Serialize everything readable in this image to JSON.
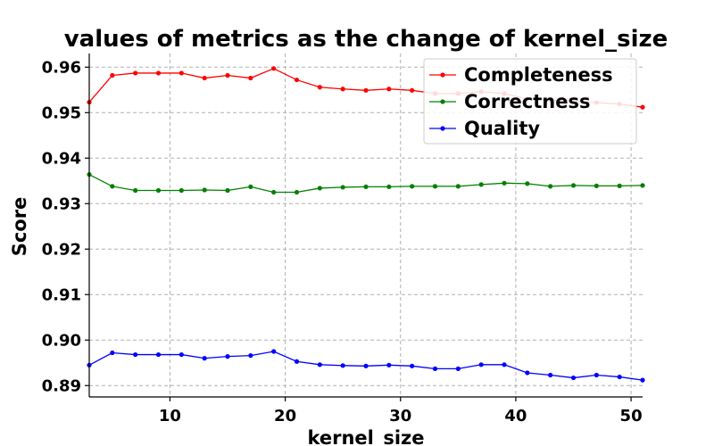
{
  "chart_data": {
    "type": "line",
    "title": "values of metrics as the change of kernel_size",
    "xlabel": "kernel_size",
    "ylabel": "Score",
    "xlim": [
      3,
      51
    ],
    "ylim": [
      0.8875,
      0.963
    ],
    "xticks": [
      10,
      20,
      30,
      40,
      50
    ],
    "yticks": [
      0.89,
      0.9,
      0.91,
      0.92,
      0.93,
      0.94,
      0.95,
      0.96
    ],
    "grid": true,
    "legend_position": "top-right",
    "x": [
      3,
      5,
      7,
      9,
      11,
      13,
      15,
      17,
      19,
      21,
      23,
      25,
      27,
      29,
      31,
      33,
      35,
      37,
      39,
      41,
      43,
      45,
      47,
      49,
      51
    ],
    "series": [
      {
        "name": "Completeness",
        "color": "#ff0000",
        "values": [
          0.9523,
          0.9582,
          0.9587,
          0.9587,
          0.9587,
          0.9576,
          0.9582,
          0.9576,
          0.9597,
          0.9572,
          0.9556,
          0.9552,
          0.9549,
          0.9552,
          0.9549,
          0.9542,
          0.9542,
          0.9546,
          0.9542,
          0.953,
          0.9528,
          0.9526,
          0.9522,
          0.9519,
          0.9512
        ]
      },
      {
        "name": "Correctness",
        "color": "#008000",
        "values": [
          0.9364,
          0.9338,
          0.9329,
          0.9329,
          0.9329,
          0.933,
          0.9329,
          0.9337,
          0.9325,
          0.9325,
          0.9334,
          0.9336,
          0.9337,
          0.9337,
          0.9338,
          0.9338,
          0.9338,
          0.9342,
          0.9345,
          0.9344,
          0.9338,
          0.934,
          0.9339,
          0.9339,
          0.934
        ]
      },
      {
        "name": "Quality",
        "color": "#0000ff",
        "values": [
          0.8945,
          0.8972,
          0.8968,
          0.8968,
          0.8968,
          0.896,
          0.8964,
          0.8966,
          0.8975,
          0.8953,
          0.8946,
          0.8944,
          0.8943,
          0.8945,
          0.8943,
          0.8937,
          0.8937,
          0.8946,
          0.8946,
          0.8928,
          0.8923,
          0.8917,
          0.8923,
          0.8919,
          0.8912
        ]
      }
    ]
  }
}
